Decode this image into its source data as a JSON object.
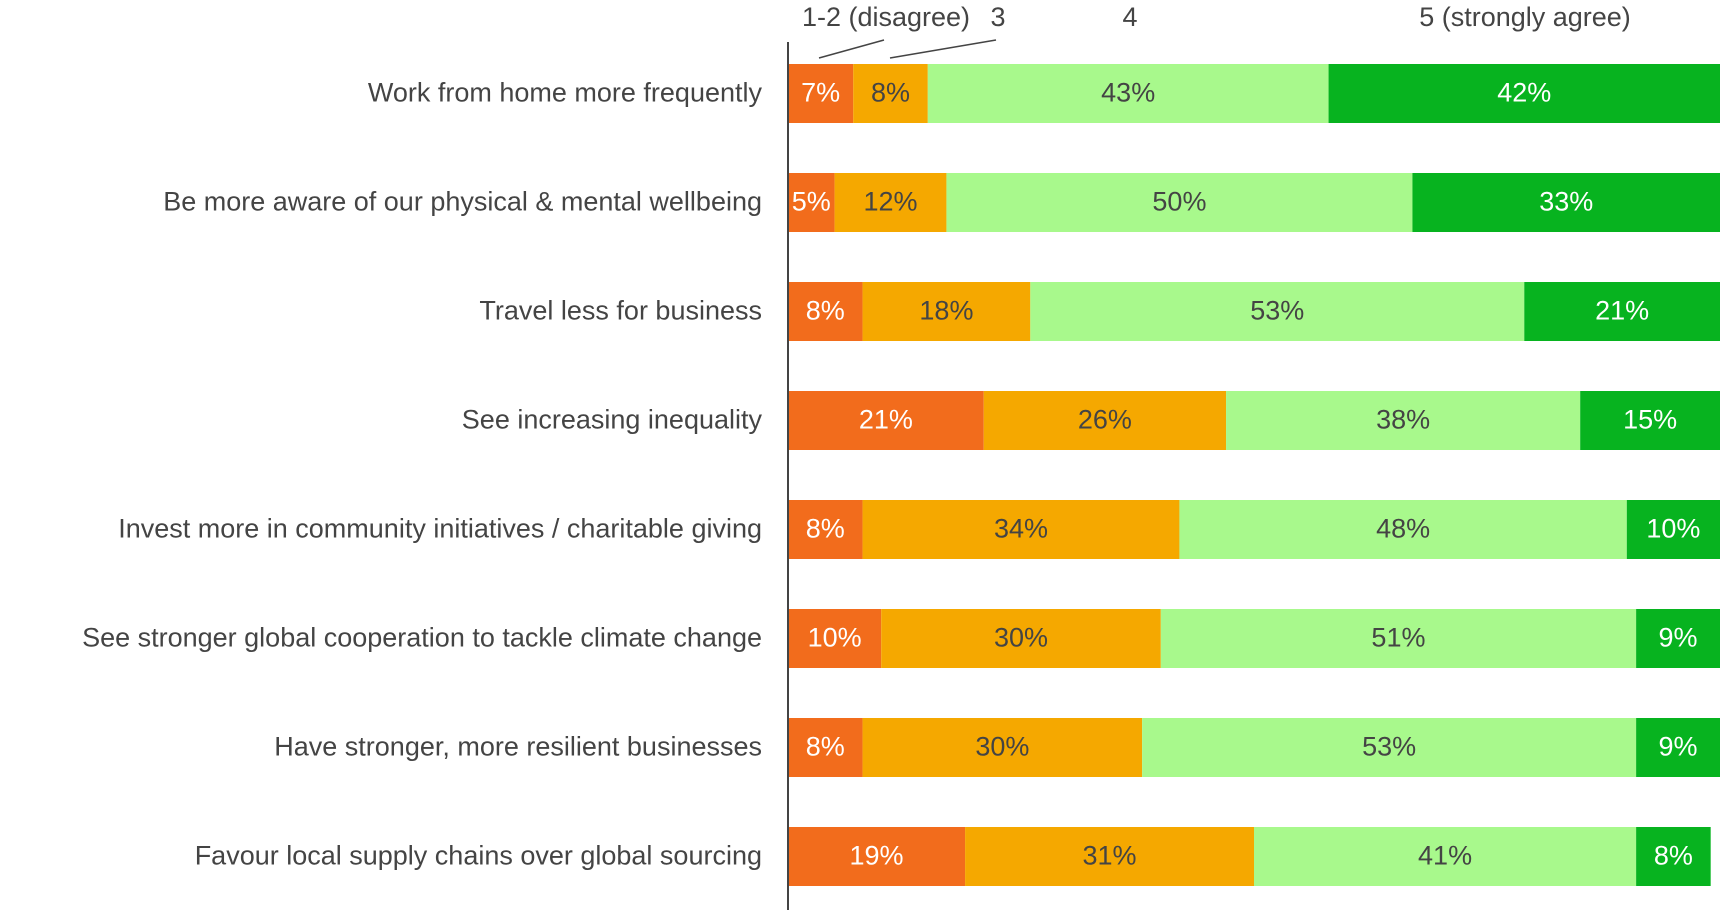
{
  "chart_data": {
    "type": "stacked-bar",
    "categories": [
      "Work from home more frequently",
      "Be more aware of our physical & mental wellbeing",
      "Travel less for business",
      "See increasing inequality",
      "Invest more in community initiatives / charitable giving",
      "See stronger global cooperation to tackle climate change",
      "Have stronger, more resilient businesses",
      "Favour local supply chains over global sourcing"
    ],
    "series": [
      {
        "name": "1-2 (disagree)",
        "color": "#f26c1c",
        "values": [
          7,
          5,
          8,
          21,
          8,
          10,
          8,
          19
        ],
        "value_labels": [
          "7%",
          "5%",
          "8%",
          "21%",
          "8%",
          "10%",
          "8%",
          "19%"
        ]
      },
      {
        "name": "3",
        "color": "#f5a800",
        "values": [
          8,
          12,
          18,
          26,
          34,
          30,
          30,
          31
        ],
        "value_labels": [
          "8%",
          "12%",
          "18%",
          "26%",
          "34%",
          "30%",
          "30%",
          "31%"
        ]
      },
      {
        "name": "4",
        "color": "#a8f98c",
        "values": [
          43,
          50,
          53,
          38,
          48,
          51,
          53,
          41
        ],
        "value_labels": [
          "43%",
          "50%",
          "53%",
          "38%",
          "48%",
          "51%",
          "53%",
          "41%"
        ]
      },
      {
        "name": "5 (strongly agree)",
        "color": "#07b31f",
        "values": [
          42,
          33,
          21,
          15,
          10,
          9,
          9,
          8
        ],
        "value_labels": [
          "42%",
          "33%",
          "21%",
          "15%",
          "10%",
          "9%",
          "9%",
          "8%"
        ]
      }
    ],
    "xlim": [
      0,
      100
    ]
  }
}
